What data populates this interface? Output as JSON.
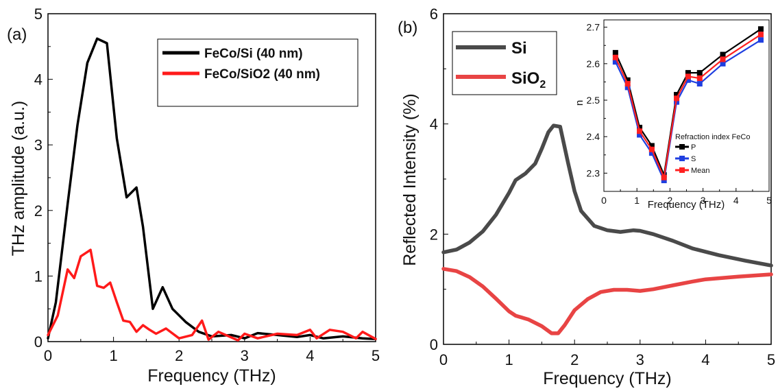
{
  "chart_data": [
    {
      "panel": "(a)",
      "type": "line",
      "xlabel": "Frequency (THz)",
      "ylabel": "THz amplitude (a.u.)",
      "xlim": [
        0,
        5
      ],
      "ylim": [
        0,
        5
      ],
      "xticks": [
        "0",
        "1",
        "2",
        "3",
        "4",
        "5"
      ],
      "yticks": [
        "0",
        "1",
        "2",
        "3",
        "4",
        "5"
      ],
      "legend_position": "top-right",
      "series": [
        {
          "name": "FeCo/Si (40 nm)",
          "color": "#000000",
          "x": [
            0,
            0.12,
            0.3,
            0.45,
            0.6,
            0.75,
            0.9,
            1.05,
            1.2,
            1.35,
            1.45,
            1.6,
            1.75,
            1.9,
            2.1,
            2.3,
            2.5,
            2.8,
            3.0,
            3.2,
            3.5,
            3.8,
            4.0,
            4.2,
            4.5,
            4.8,
            5.0
          ],
          "y": [
            0.05,
            0.6,
            2.1,
            3.3,
            4.25,
            4.62,
            4.55,
            3.1,
            2.2,
            2.35,
            1.75,
            0.5,
            0.83,
            0.5,
            0.3,
            0.15,
            0.08,
            0.1,
            0.05,
            0.13,
            0.1,
            0.07,
            0.1,
            0.05,
            0.08,
            0.05,
            0.04
          ]
        },
        {
          "name": "FeCo/SiO2 (40 nm)",
          "color": "#ff1a1a",
          "x": [
            0,
            0.15,
            0.3,
            0.4,
            0.5,
            0.65,
            0.75,
            0.85,
            0.95,
            1.05,
            1.15,
            1.25,
            1.35,
            1.45,
            1.55,
            1.65,
            1.8,
            2.0,
            2.2,
            2.35,
            2.45,
            2.6,
            2.9,
            3.0,
            3.2,
            3.5,
            3.8,
            4.0,
            4.1,
            4.3,
            4.5,
            4.7,
            4.8,
            5.0
          ],
          "y": [
            0.1,
            0.4,
            1.1,
            0.97,
            1.3,
            1.4,
            0.85,
            0.82,
            0.9,
            0.6,
            0.32,
            0.3,
            0.15,
            0.25,
            0.18,
            0.12,
            0.2,
            0.05,
            0.1,
            0.32,
            0.03,
            0.15,
            0.02,
            0.12,
            0.05,
            0.12,
            0.1,
            0.18,
            0.05,
            0.18,
            0.15,
            0.05,
            0.15,
            0.04
          ]
        }
      ]
    },
    {
      "panel": "(b)",
      "type": "line",
      "xlabel": "Frequency (THz)",
      "ylabel": "Reflected Intensity (%)",
      "xlim": [
        0,
        5
      ],
      "ylim": [
        0,
        6
      ],
      "xticks": [
        "0",
        "1",
        "2",
        "3",
        "4",
        "5"
      ],
      "yticks": [
        "0",
        "2",
        "4",
        "6"
      ],
      "legend_position": "top-left",
      "series": [
        {
          "name": "Si",
          "color": "#4a4a4a",
          "x": [
            0,
            0.2,
            0.4,
            0.6,
            0.8,
            1.0,
            1.1,
            1.25,
            1.4,
            1.5,
            1.6,
            1.68,
            1.78,
            1.9,
            2.0,
            2.1,
            2.3,
            2.5,
            2.7,
            2.9,
            3.0,
            3.2,
            3.5,
            3.8,
            4.2,
            4.6,
            5.0
          ],
          "y": [
            1.67,
            1.72,
            1.85,
            2.05,
            2.35,
            2.75,
            2.98,
            3.1,
            3.28,
            3.55,
            3.85,
            3.97,
            3.95,
            3.3,
            2.78,
            2.42,
            2.15,
            2.07,
            2.04,
            2.07,
            2.06,
            2.0,
            1.88,
            1.74,
            1.62,
            1.52,
            1.43
          ]
        },
        {
          "name": "SiO2",
          "color": "#e84444",
          "x": [
            0,
            0.2,
            0.4,
            0.6,
            0.8,
            1.0,
            1.1,
            1.3,
            1.5,
            1.65,
            1.75,
            1.85,
            2.0,
            2.2,
            2.4,
            2.6,
            2.8,
            3.0,
            3.2,
            3.5,
            3.8,
            4.0,
            4.5,
            5.0
          ],
          "y": [
            1.37,
            1.33,
            1.22,
            1.05,
            0.83,
            0.6,
            0.52,
            0.45,
            0.33,
            0.2,
            0.2,
            0.35,
            0.62,
            0.82,
            0.95,
            0.99,
            0.99,
            0.97,
            1.0,
            1.07,
            1.14,
            1.18,
            1.23,
            1.27
          ]
        }
      ]
    },
    {
      "panel": "inset",
      "type": "line",
      "title": "Refraction index FeCo",
      "xlabel": "Frequency (THz)",
      "ylabel": "n",
      "xlim": [
        0,
        5
      ],
      "ylim": [
        2.25,
        2.72
      ],
      "xticks": [
        "0",
        "1",
        "2",
        "3",
        "4",
        "5"
      ],
      "yticks": [
        "2.3",
        "2.4",
        "2.5",
        "2.6",
        "2.7"
      ],
      "legend_position": "center-right",
      "series": [
        {
          "name": "P",
          "color": "#000000",
          "x": [
            0.35,
            0.72,
            1.08,
            1.45,
            1.82,
            2.2,
            2.55,
            2.9,
            3.6,
            4.75
          ],
          "y": [
            2.63,
            2.555,
            2.425,
            2.375,
            2.295,
            2.515,
            2.575,
            2.575,
            2.625,
            2.695
          ]
        },
        {
          "name": "S",
          "color": "#1f3fe0",
          "x": [
            0.35,
            0.72,
            1.08,
            1.45,
            1.82,
            2.2,
            2.55,
            2.9,
            3.6,
            4.75
          ],
          "y": [
            2.605,
            2.535,
            2.405,
            2.355,
            2.28,
            2.495,
            2.555,
            2.545,
            2.6,
            2.665
          ]
        },
        {
          "name": "Mean",
          "color": "#ff2020",
          "x": [
            0.35,
            0.72,
            1.08,
            1.45,
            1.82,
            2.2,
            2.55,
            2.9,
            3.6,
            4.75
          ],
          "y": [
            2.617,
            2.545,
            2.415,
            2.365,
            2.288,
            2.505,
            2.565,
            2.56,
            2.612,
            2.68
          ]
        }
      ]
    }
  ]
}
